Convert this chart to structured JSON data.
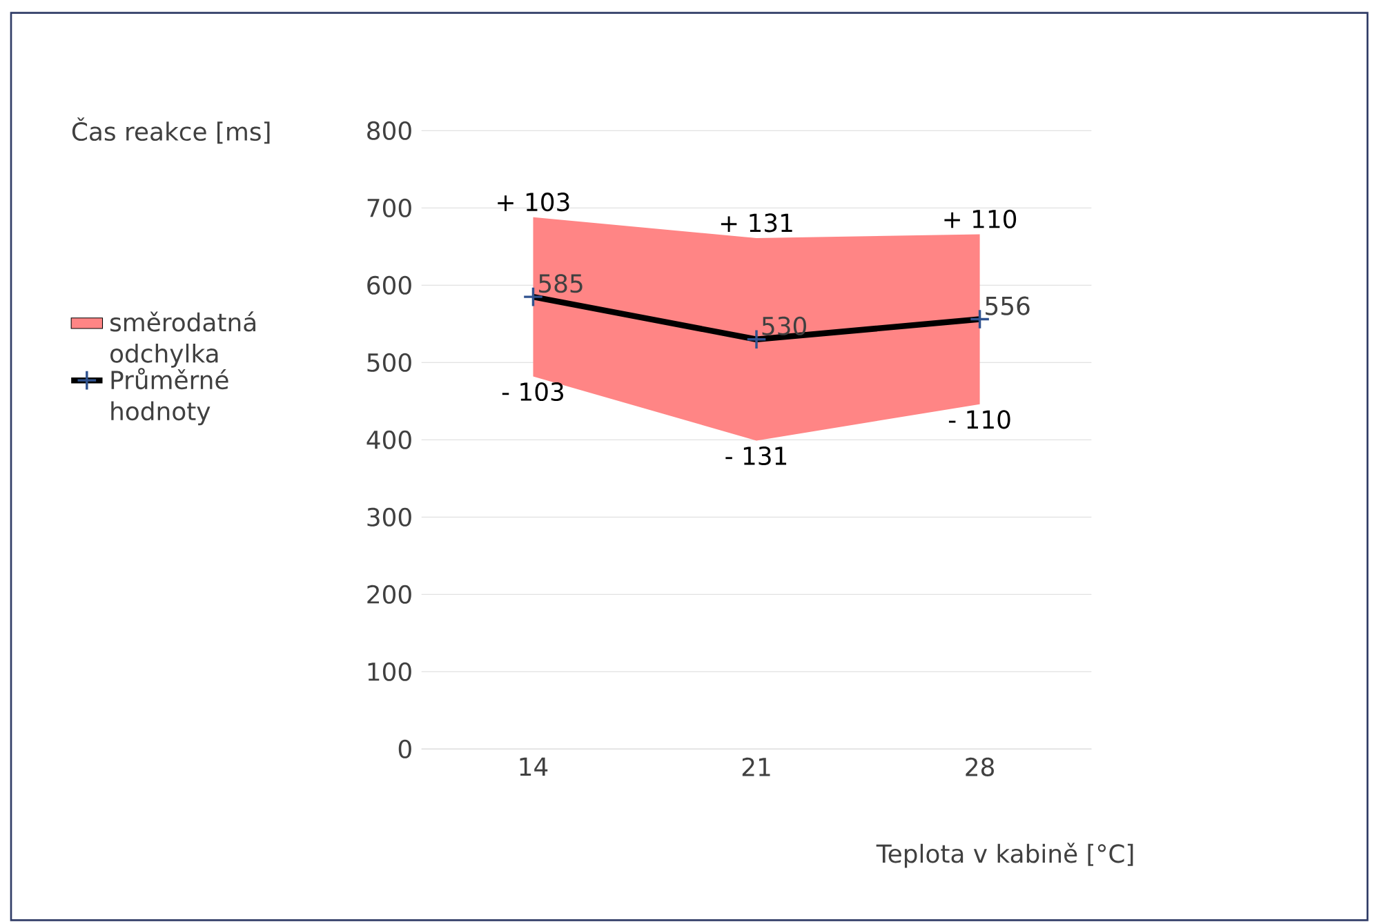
{
  "chart_data": {
    "type": "line",
    "ylabel": "Čas reakce [ms]",
    "xlabel": "Teplota v kabině [°C]",
    "categories": [
      "14",
      "21",
      "28"
    ],
    "series": [
      {
        "name": "směrodatná odchylka",
        "type": "area",
        "color": "#ff8585",
        "values": [
          null,
          null,
          null
        ]
      },
      {
        "name": "Průměrné hodnoty",
        "color": "#000000",
        "colors": [
          "#2f528f",
          "#2f528f",
          "#2f528f"
        ],
        "marker": "cross",
        "values": [
          585,
          530,
          556
        ],
        "lower": [
          482,
          399,
          446
        ],
        "upper": [
          688,
          661,
          666
        ],
        "value_labels": [
          "585",
          "530",
          "556"
        ]
      }
    ],
    "ylim": [
      0,
      800
    ],
    "yticks": [
      0,
      100,
      200,
      300,
      400,
      500,
      600,
      700,
      800
    ],
    "grid": "y",
    "legend": "left",
    "annotations": [
      {
        "text": "+ 103",
        "x": "14",
        "y": 688
      },
      {
        "text": "- 103",
        "x": "14",
        "y": 482
      },
      {
        "text": "+ 131",
        "x": "21",
        "y": 661
      },
      {
        "text": "- 131",
        "x": "21",
        "y": 399
      },
      {
        "text": "+ 110",
        "x": "28",
        "y": 666
      },
      {
        "text": "- 110",
        "x": "28",
        "y": 446
      }
    ]
  }
}
